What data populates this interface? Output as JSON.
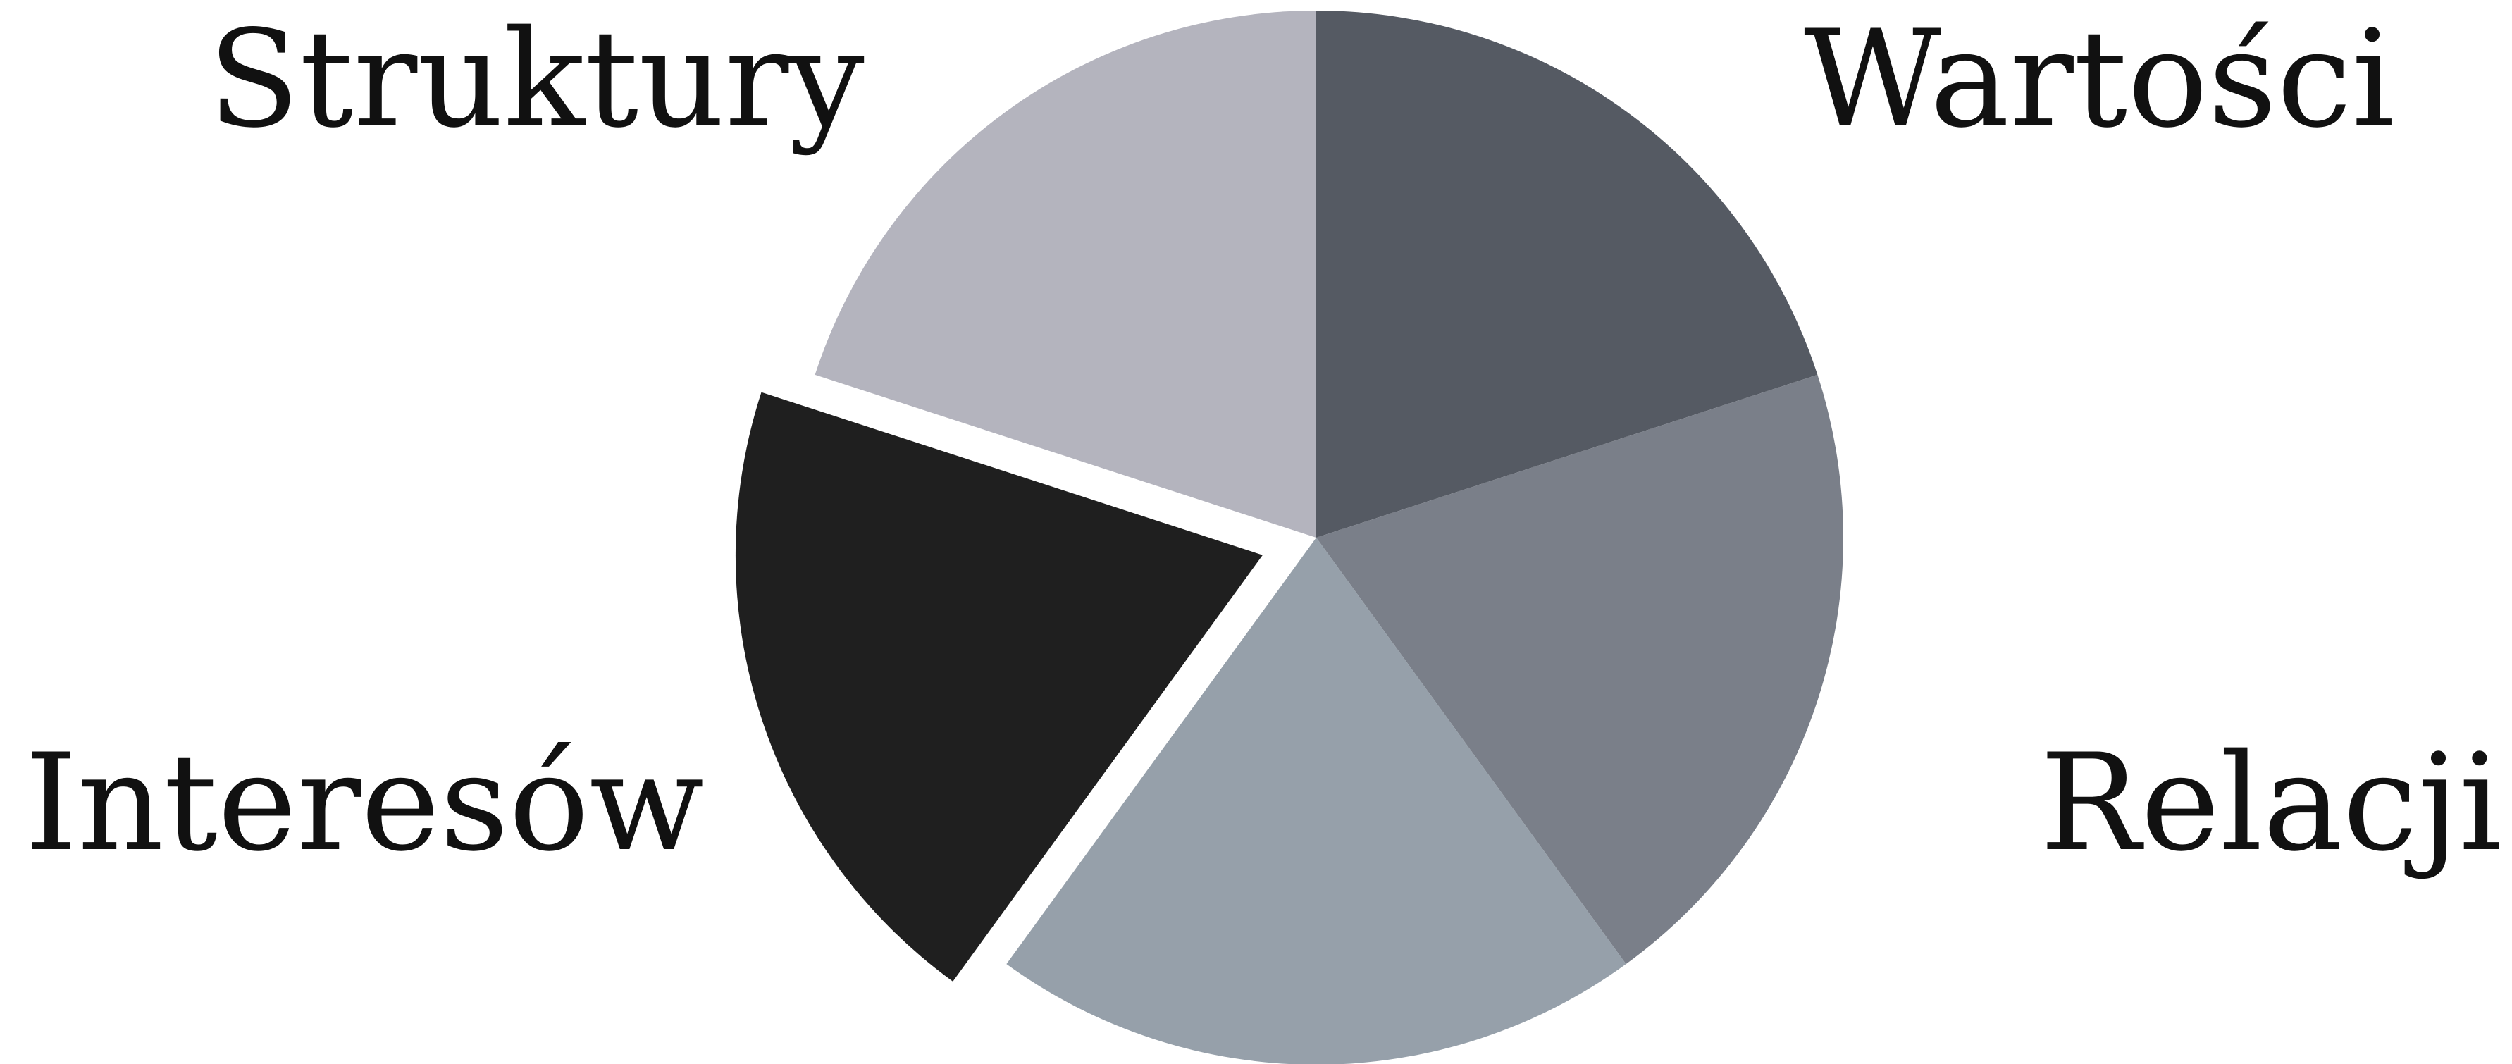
{
  "chart_data": {
    "type": "pie",
    "title": "",
    "categories": [
      "Wartości",
      "Relacji",
      "",
      "Interesów",
      "Struktury"
    ],
    "values": [
      20,
      20,
      20,
      20,
      20
    ],
    "colors": [
      "#555a63",
      "#7a7f89",
      "#96a0aa",
      "#1f1f1f",
      "#b4b4be"
    ],
    "exploded": [
      false,
      false,
      false,
      true,
      false
    ],
    "start_angle_deg": 0,
    "direction": "clockwise",
    "legend": "none"
  }
}
